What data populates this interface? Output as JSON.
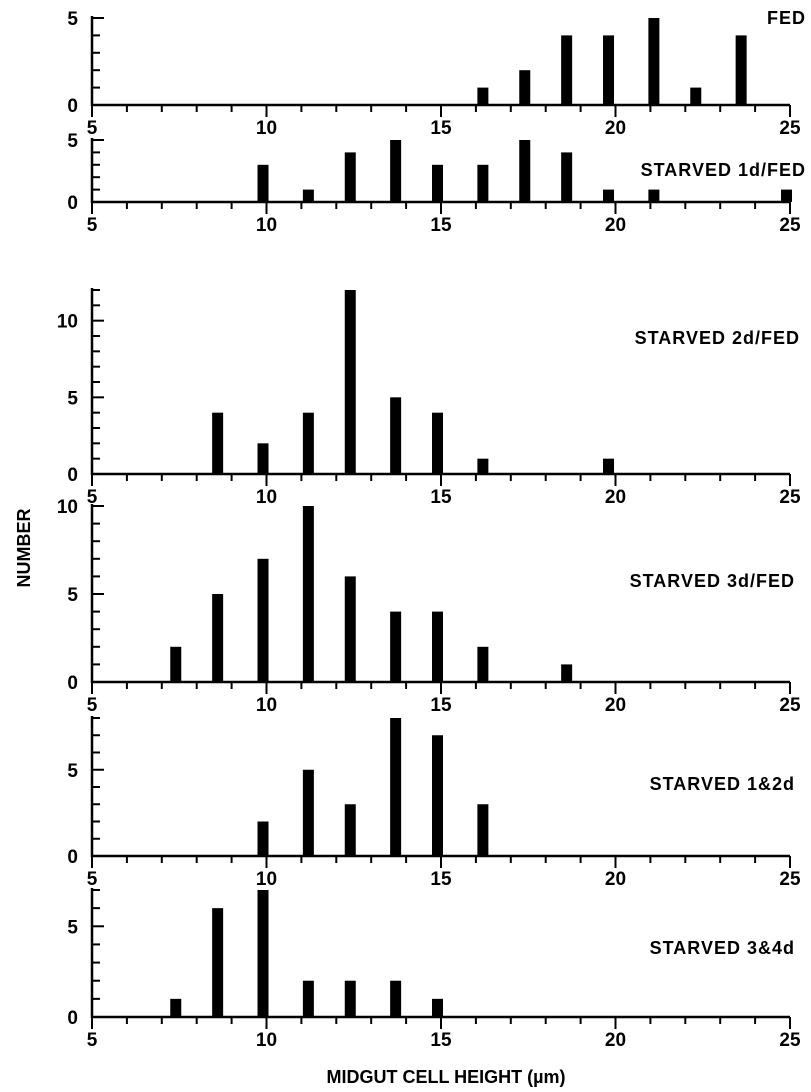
{
  "chart_data": {
    "type": "bar",
    "ylabel": "NUMBER",
    "xlabel": "MIDGUT CELL HEIGHT (µm)",
    "xlim": [
      5,
      25
    ],
    "xticks": [
      "5",
      "10",
      "15",
      "20",
      "25"
    ],
    "panels": [
      {
        "label": "FED",
        "ylim": [
          0,
          5
        ],
        "yticks": [
          "0",
          "5"
        ],
        "x": [
          16.2,
          17.4,
          18.6,
          19.8,
          21.1,
          22.3,
          23.6
        ],
        "values": [
          1,
          2,
          4,
          4,
          5,
          1,
          4
        ]
      },
      {
        "label": "STARVED 1d/FED",
        "ylim": [
          0,
          5
        ],
        "yticks": [
          "0",
          "5"
        ],
        "x": [
          9.9,
          11.2,
          12.4,
          13.7,
          14.9,
          16.2,
          17.4,
          18.6,
          19.8,
          21.1,
          24.9
        ],
        "values": [
          3,
          1,
          4,
          5,
          3,
          3,
          5,
          4,
          1,
          1,
          1
        ]
      },
      {
        "label": "STARVED 2d/FED",
        "ylim": [
          0,
          12
        ],
        "yticks": [
          "0",
          "5",
          "10"
        ],
        "x": [
          8.6,
          9.9,
          11.2,
          12.4,
          13.7,
          14.9,
          16.2,
          19.8
        ],
        "values": [
          4,
          2,
          4,
          12,
          5,
          4,
          1,
          1
        ]
      },
      {
        "label": "STARVED 3d/FED",
        "ylim": [
          0,
          10
        ],
        "yticks": [
          "0",
          "5",
          "10"
        ],
        "x": [
          7.4,
          8.6,
          9.9,
          11.2,
          12.4,
          13.7,
          14.9,
          16.2,
          18.6
        ],
        "values": [
          2,
          5,
          7,
          10,
          6,
          4,
          4,
          2,
          1
        ]
      },
      {
        "label": "STARVED 1&2d",
        "ylim": [
          0,
          8
        ],
        "yticks": [
          "0",
          "5"
        ],
        "x": [
          9.9,
          11.2,
          12.4,
          13.7,
          14.9,
          16.2
        ],
        "values": [
          2,
          5,
          3,
          8,
          7,
          3
        ]
      },
      {
        "label": "STARVED 3&4d",
        "ylim": [
          0,
          7
        ],
        "yticks": [
          "0",
          "5"
        ],
        "x": [
          7.4,
          8.6,
          9.9,
          11.2,
          12.4,
          13.7,
          14.9
        ],
        "values": [
          1,
          6,
          7,
          2,
          2,
          2,
          1
        ]
      }
    ]
  }
}
